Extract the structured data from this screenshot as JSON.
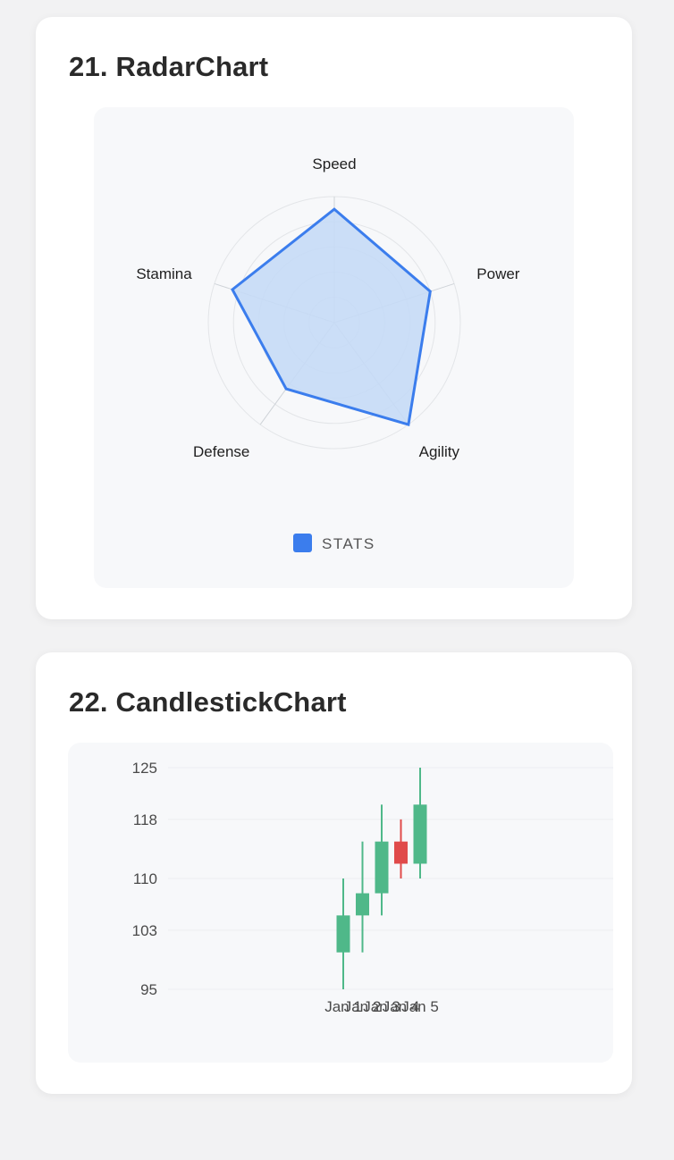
{
  "radar_card": {
    "title": "21. RadarChart"
  },
  "candle_card": {
    "title": "22. CandlestickChart"
  },
  "colors": {
    "radar_stroke": "#3b7ded",
    "radar_fill": "#c5daf6",
    "up": "#4fb889",
    "down": "#e04a4a",
    "grid": "#e3e5e8"
  },
  "chart_data": [
    {
      "type": "radar",
      "axes": [
        "Speed",
        "Power",
        "Agility",
        "Defense",
        "Stamina"
      ],
      "series": [
        {
          "name": "STATS",
          "values": [
            90,
            80,
            100,
            65,
            85
          ]
        }
      ],
      "range": [
        0,
        100
      ],
      "legend": "bottom"
    },
    {
      "type": "candlestick",
      "categories": [
        "Jan 1",
        "Jan 2",
        "Jan 3",
        "Jan 4",
        "Jan 5"
      ],
      "open": [
        100,
        105,
        108,
        115,
        112
      ],
      "high": [
        110,
        115,
        120,
        118,
        125
      ],
      "low": [
        95,
        100,
        105,
        110,
        110
      ],
      "close": [
        105,
        108,
        115,
        112,
        120
      ],
      "yticks": [
        "95",
        "103",
        "110",
        "118",
        "125"
      ],
      "ylim": [
        95,
        125
      ],
      "grid": true
    }
  ]
}
